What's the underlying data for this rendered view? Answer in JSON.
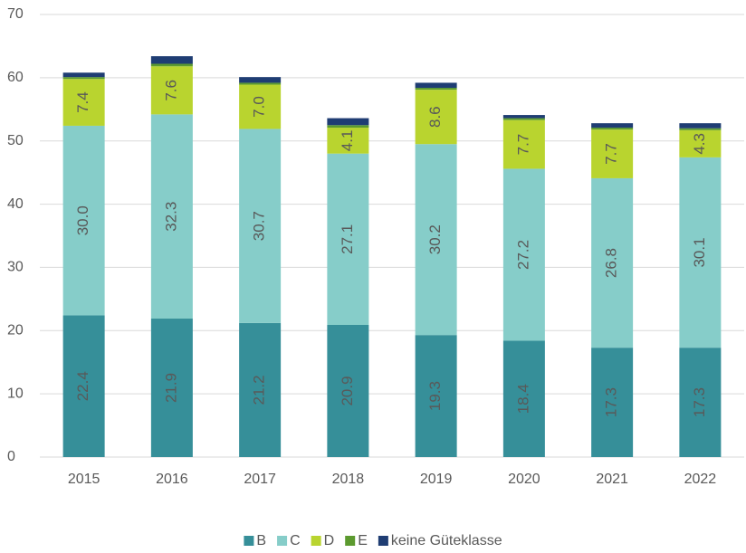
{
  "chart_data": {
    "type": "stacked_bar",
    "categories": [
      "2015",
      "2016",
      "2017",
      "2018",
      "2019",
      "2020",
      "2021",
      "2022"
    ],
    "series": [
      {
        "name": "B",
        "color": "#368f99",
        "values": [
          22.4,
          21.9,
          21.2,
          20.9,
          19.3,
          18.4,
          17.3,
          17.3
        ],
        "value_labels": [
          "22.4",
          "21.9",
          "21.2",
          "20.9",
          "19.3",
          "18.4",
          "17.3",
          "17.3"
        ]
      },
      {
        "name": "C",
        "color": "#86cdc9",
        "values": [
          30.0,
          32.3,
          30.7,
          27.1,
          30.2,
          27.2,
          26.8,
          30.1
        ],
        "value_labels": [
          "30.0",
          "32.3",
          "30.7",
          "27.1",
          "30.2",
          "27.2",
          "26.8",
          "30.1"
        ]
      },
      {
        "name": "D",
        "color": "#b9d42f",
        "values": [
          7.4,
          7.6,
          7.0,
          4.1,
          8.6,
          7.7,
          7.7,
          4.3
        ],
        "value_labels": [
          "7.4",
          "7.6",
          "7.0",
          "4.1",
          "8.6",
          "7.7",
          "7.7",
          "4.3"
        ]
      },
      {
        "name": "E",
        "color": "#5c9a2f",
        "values": [
          0.3,
          0.4,
          0.3,
          0.4,
          0.3,
          0.3,
          0.3,
          0.3
        ]
      },
      {
        "name": "keine Güteklasse",
        "color": "#1f3d73",
        "values": [
          0.7,
          1.2,
          0.9,
          1.1,
          0.8,
          0.5,
          0.7,
          0.8
        ]
      }
    ],
    "ylim": [
      0,
      70
    ],
    "yticks": [
      0,
      10,
      20,
      30,
      40,
      50,
      60,
      70
    ],
    "grid": true,
    "legend": "bottom"
  }
}
